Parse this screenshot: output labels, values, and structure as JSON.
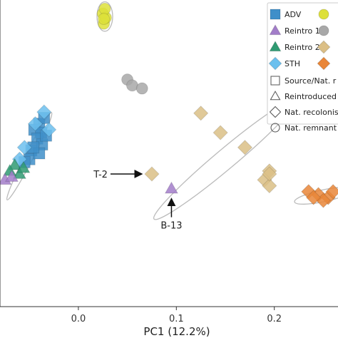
{
  "chart_data": {
    "type": "scatter",
    "title": "",
    "xlabel": "PC1 (12.2%)",
    "ylabel": "",
    "xlim": [
      -0.08,
      0.265
    ],
    "ylim": [
      -0.25,
      0.27
    ],
    "x_ticks": [
      {
        "value": 0.0,
        "label": "0.0"
      },
      {
        "value": 0.1,
        "label": "0.1"
      },
      {
        "value": 0.2,
        "label": "0.2"
      }
    ],
    "grid": false,
    "legend": {
      "position": "top-right",
      "entries": [
        {
          "label": "ADV",
          "marker": "square",
          "color": "#3f8fc9"
        },
        {
          "label": "",
          "marker": "circle",
          "color": "#dde03a"
        },
        {
          "label": "Reintro 1",
          "marker": "triangle",
          "color": "#a27dc9"
        },
        {
          "label": "",
          "marker": "circle",
          "color": "#a8a8a8"
        },
        {
          "label": "Reintro 2",
          "marker": "triangle",
          "color": "#2f9a72"
        },
        {
          "label": "",
          "marker": "diamond",
          "color": "#dbbf86"
        },
        {
          "label": "STH",
          "marker": "diamond",
          "color": "#6cc0ee"
        },
        {
          "label": "",
          "marker": "diamond",
          "color": "#e98638"
        },
        {
          "label": "Source/Nat. r",
          "marker": "square-open",
          "color": "#555555"
        },
        {
          "label": "Reintroduced",
          "marker": "triangle-open",
          "color": "#555555"
        },
        {
          "label": "Nat. recolonis",
          "marker": "diamond-open",
          "color": "#555555"
        },
        {
          "label": "Nat. remnant",
          "marker": "circle-open",
          "color": "#555555"
        }
      ]
    },
    "series": [
      {
        "color": "#3f8fc9",
        "marker": "square",
        "points": [
          [
            -0.04,
            0.06
          ],
          [
            -0.035,
            0.07
          ],
          [
            -0.045,
            0.05
          ],
          [
            -0.038,
            0.045
          ],
          [
            -0.042,
            0.035
          ],
          [
            -0.037,
            0.025
          ],
          [
            -0.048,
            0.015
          ],
          [
            -0.05,
            0.0
          ],
          [
            -0.055,
            -0.005
          ],
          [
            -0.04,
            0.01
          ],
          [
            -0.033,
            0.04
          ],
          [
            -0.046,
            0.02
          ]
        ]
      },
      {
        "color": "#6cc0ee",
        "marker": "diamond",
        "points": [
          [
            -0.035,
            0.08
          ],
          [
            -0.06,
            0.0
          ],
          [
            -0.055,
            0.02
          ],
          [
            -0.044,
            0.06
          ],
          [
            -0.03,
            0.05
          ]
        ]
      },
      {
        "color": "#2f9a72",
        "marker": "triangle",
        "points": [
          [
            -0.065,
            -0.01
          ],
          [
            -0.06,
            -0.025
          ],
          [
            -0.07,
            -0.02
          ],
          [
            -0.056,
            -0.015
          ]
        ]
      },
      {
        "color": "#a27dc9",
        "marker": "triangle",
        "points": [
          [
            -0.075,
            -0.035
          ],
          [
            -0.068,
            -0.03
          ],
          [
            0.095,
            -0.05
          ]
        ]
      },
      {
        "color": "#dde03a",
        "marker": "circle",
        "points": [
          [
            0.025,
            0.247
          ],
          [
            0.026,
            0.23
          ],
          [
            0.028,
            0.24
          ],
          [
            0.027,
            0.255
          ],
          [
            0.026,
            0.238
          ]
        ]
      },
      {
        "color": "#a8a8a8",
        "marker": "circle",
        "points": [
          [
            0.05,
            0.135
          ],
          [
            0.055,
            0.125
          ],
          [
            0.065,
            0.12
          ]
        ]
      },
      {
        "color": "#dbbf86",
        "marker": "diamond",
        "points": [
          [
            0.125,
            0.078
          ],
          [
            0.145,
            0.045
          ],
          [
            0.17,
            0.02
          ],
          [
            0.195,
            -0.02
          ],
          [
            0.19,
            -0.035
          ],
          [
            0.195,
            -0.045
          ],
          [
            0.195,
            -0.025
          ],
          [
            0.075,
            -0.025
          ]
        ]
      },
      {
        "color": "#e98638",
        "marker": "diamond",
        "points": [
          [
            0.245,
            -0.06
          ],
          [
            0.255,
            -0.065
          ],
          [
            0.235,
            -0.055
          ],
          [
            0.26,
            -0.055
          ],
          [
            0.25,
            -0.07
          ],
          [
            0.24,
            -0.065
          ]
        ]
      }
    ],
    "ellipses": [
      {
        "color": "#bbbbbb",
        "center": [
          0.027,
          0.242
        ],
        "rx": 0.008,
        "ry": 0.025
      },
      {
        "color": "#bbbbbb",
        "center": [
          0.15,
          0.0
        ],
        "rx": 0.095,
        "ry": 0.017,
        "angle": -40
      },
      {
        "color": "#bbbbbb",
        "center": [
          -0.05,
          0.005
        ],
        "rx": 0.05,
        "ry": 0.007,
        "angle": -63
      },
      {
        "color": "#bbbbbb",
        "center": [
          0.25,
          -0.062
        ],
        "rx": 0.03,
        "ry": 0.01,
        "angle": -12
      }
    ],
    "annotations": [
      {
        "text": "T-2",
        "point": [
          0.075,
          -0.025
        ]
      },
      {
        "text": "B-13",
        "point": [
          0.095,
          -0.05
        ]
      }
    ]
  }
}
